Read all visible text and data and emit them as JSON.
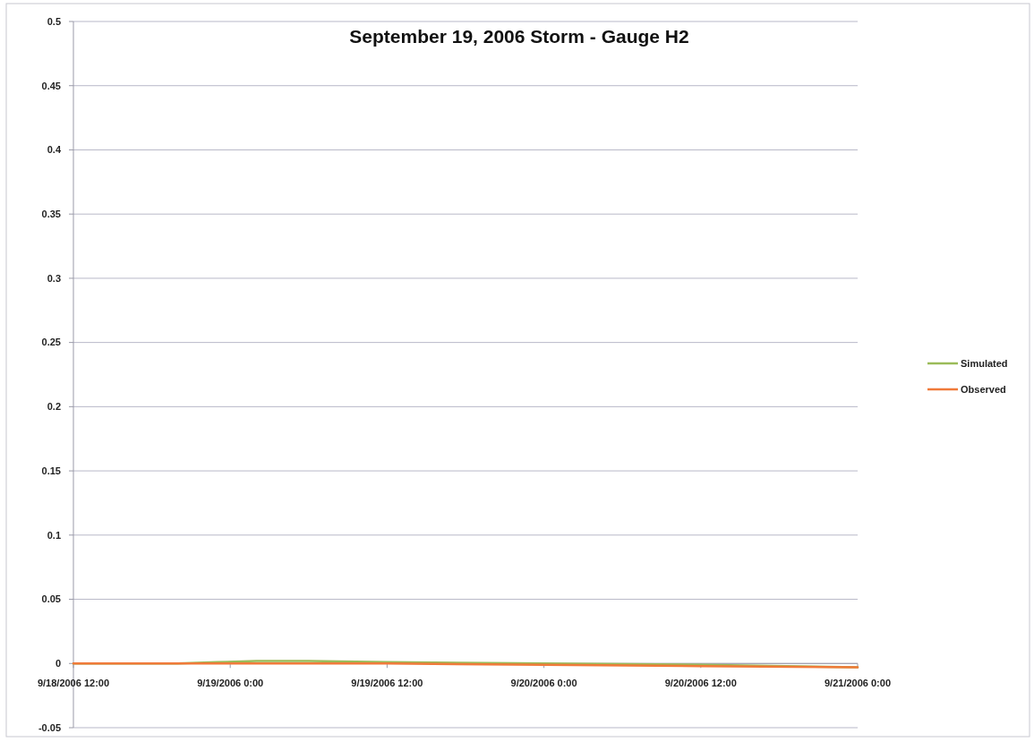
{
  "chart_data": {
    "type": "line",
    "title": "September 19, 2006 Storm - Gauge H2",
    "xlim": [
      "2006-09-18T12:00",
      "2006-09-21T00:00"
    ],
    "xticks": [
      {
        "value": "2006-09-18T12:00",
        "label": "9/18/2006 12:00"
      },
      {
        "value": "2006-09-19T00:00",
        "label": "9/19/2006 0:00"
      },
      {
        "value": "2006-09-19T12:00",
        "label": "9/19/2006 12:00"
      },
      {
        "value": "2006-09-20T00:00",
        "label": "9/20/2006 0:00"
      },
      {
        "value": "2006-09-20T12:00",
        "label": "9/20/2006 12:00"
      },
      {
        "value": "2006-09-21T00:00",
        "label": "9/21/2006 0:00"
      }
    ],
    "ylim": [
      -0.05,
      0.5
    ],
    "yticks": [
      -0.05,
      0,
      0.05,
      0.1,
      0.15,
      0.2,
      0.25,
      0.3,
      0.35,
      0.4,
      0.45,
      0.5
    ],
    "grid": "y",
    "legend": "right",
    "marker": "none",
    "line_style": "solid",
    "series": [
      {
        "name": "Simulated",
        "color": "#9bbb59",
        "x": [
          "2006-09-18T12:00",
          "2006-09-18T20:00",
          "2006-09-18T23:00",
          "2006-09-19T02:00",
          "2006-09-19T06:00",
          "2006-09-19T12:00",
          "2006-09-20T00:00",
          "2006-09-20T12:00",
          "2006-09-21T00:00"
        ],
        "values": [
          0,
          0,
          0.001,
          0.002,
          0.002,
          0.001,
          0,
          -0.001,
          -0.003
        ]
      },
      {
        "name": "Observed",
        "color": "#f07a3a",
        "x": [
          "2006-09-18T12:00",
          "2006-09-19T12:00",
          "2006-09-20T00:00",
          "2006-09-20T12:00",
          "2006-09-21T00:00"
        ],
        "values": [
          0,
          0,
          -0.001,
          -0.002,
          -0.003
        ]
      }
    ]
  }
}
